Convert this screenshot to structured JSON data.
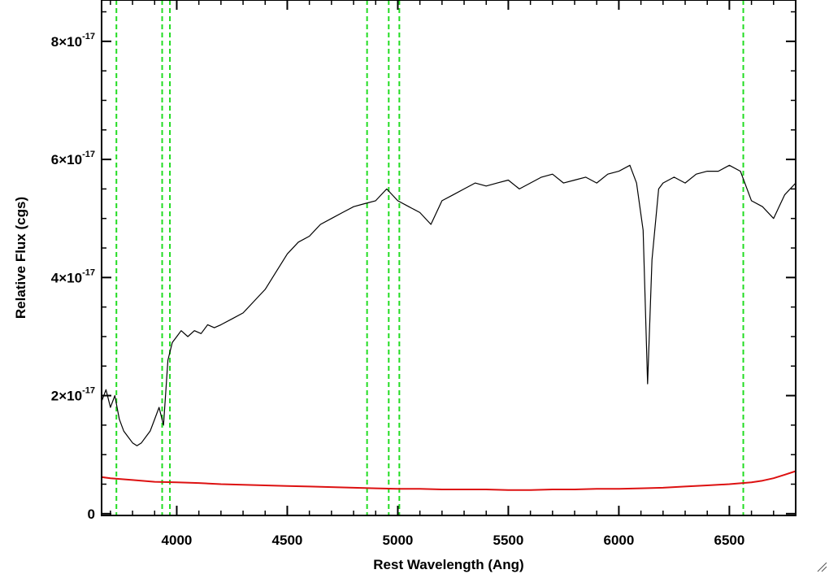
{
  "chart_data": {
    "type": "line",
    "title": "",
    "xlabel": "Rest Wavelength (Ang)",
    "ylabel": "Relative Flux (cgs)",
    "xlim": [
      3660,
      6800
    ],
    "ylim": [
      -0.03,
      8.7
    ],
    "y_unit_exponent": "-17",
    "x_ticks": [
      4000,
      4500,
      5000,
      5500,
      6000,
      6500
    ],
    "x_tick_labels": [
      "4000",
      "4500",
      "5000",
      "5500",
      "6000",
      "6500"
    ],
    "y_ticks": [
      0,
      2,
      4,
      6,
      8
    ],
    "y_tick_labels": [
      {
        "mantissa": "0",
        "times": "",
        "base": "",
        "exp": ""
      },
      {
        "mantissa": "2",
        "times": "×",
        "base": "10",
        "exp": "-17"
      },
      {
        "mantissa": "4",
        "times": "×",
        "base": "10",
        "exp": "-17"
      },
      {
        "mantissa": "6",
        "times": "×",
        "base": "10",
        "exp": "-17"
      },
      {
        "mantissa": "8",
        "times": "×",
        "base": "10",
        "exp": "-17"
      }
    ],
    "grid": false,
    "vertical_lines": {
      "style": "dashed",
      "color": "#22dd22",
      "x": [
        3727,
        3934,
        3969,
        4861,
        4959,
        5007,
        6563
      ]
    },
    "series": [
      {
        "color": "#000000",
        "x": [
          3660,
          3680,
          3700,
          3720,
          3740,
          3760,
          3780,
          3800,
          3820,
          3840,
          3860,
          3880,
          3900,
          3920,
          3940,
          3960,
          3980,
          4000,
          4020,
          4050,
          4080,
          4110,
          4140,
          4170,
          4200,
          4250,
          4300,
          4350,
          4400,
          4450,
          4500,
          4550,
          4600,
          4650,
          4700,
          4750,
          4800,
          4850,
          4900,
          4950,
          5000,
          5050,
          5100,
          5150,
          5200,
          5250,
          5300,
          5350,
          5400,
          5450,
          5500,
          5550,
          5600,
          5650,
          5700,
          5750,
          5800,
          5850,
          5900,
          5950,
          6000,
          6050,
          6080,
          6110,
          6130,
          6150,
          6180,
          6200,
          6250,
          6300,
          6350,
          6400,
          6450,
          6500,
          6550,
          6600,
          6650,
          6700,
          6750,
          6800
        ],
        "y": [
          1.9,
          2.1,
          1.8,
          2.0,
          1.6,
          1.4,
          1.3,
          1.2,
          1.15,
          1.2,
          1.3,
          1.4,
          1.6,
          1.8,
          1.5,
          2.6,
          2.9,
          3.0,
          3.1,
          3.0,
          3.1,
          3.05,
          3.2,
          3.15,
          3.2,
          3.3,
          3.4,
          3.6,
          3.8,
          4.1,
          4.4,
          4.6,
          4.7,
          4.9,
          5.0,
          5.1,
          5.2,
          5.25,
          5.3,
          5.5,
          5.3,
          5.2,
          5.1,
          4.9,
          5.3,
          5.4,
          5.5,
          5.6,
          5.55,
          5.6,
          5.65,
          5.5,
          5.6,
          5.7,
          5.75,
          5.6,
          5.65,
          5.7,
          5.6,
          5.75,
          5.8,
          5.9,
          5.6,
          4.8,
          2.2,
          4.3,
          5.5,
          5.6,
          5.7,
          5.6,
          5.75,
          5.8,
          5.8,
          5.9,
          5.8,
          5.3,
          5.2,
          5.0,
          5.4,
          5.6
        ]
      },
      {
        "color": "#dd1111",
        "x": [
          3660,
          3700,
          3800,
          3900,
          4000,
          4100,
          4200,
          4300,
          4400,
          4500,
          4600,
          4700,
          4800,
          4900,
          5000,
          5100,
          5200,
          5300,
          5400,
          5500,
          5600,
          5700,
          5800,
          5900,
          6000,
          6100,
          6200,
          6300,
          6400,
          6500,
          6600,
          6650,
          6700,
          6750,
          6800
        ],
        "y": [
          0.62,
          0.6,
          0.57,
          0.54,
          0.53,
          0.52,
          0.5,
          0.49,
          0.48,
          0.47,
          0.46,
          0.45,
          0.44,
          0.43,
          0.42,
          0.42,
          0.41,
          0.41,
          0.41,
          0.4,
          0.4,
          0.41,
          0.41,
          0.42,
          0.42,
          0.43,
          0.44,
          0.46,
          0.48,
          0.5,
          0.53,
          0.56,
          0.6,
          0.66,
          0.72
        ]
      }
    ]
  }
}
